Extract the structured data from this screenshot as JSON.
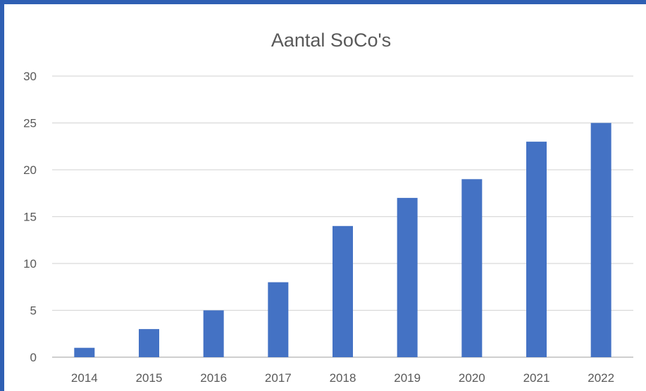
{
  "chart_data": {
    "type": "bar",
    "title": "Aantal SoCo's",
    "xlabel": "",
    "ylabel": "",
    "categories": [
      "2014",
      "2015",
      "2016",
      "2017",
      "2018",
      "2019",
      "2020",
      "2021",
      "2022"
    ],
    "series": [
      {
        "values": [
          1,
          3,
          5,
          8,
          14,
          17,
          19,
          23,
          25
        ]
      }
    ],
    "ylim": [
      0,
      30
    ],
    "yticks": [
      0,
      5,
      10,
      15,
      20,
      25,
      30
    ],
    "grid": true,
    "legend": "none",
    "colors": {
      "bar": "#4472c4",
      "border": "#2f5fb3"
    }
  }
}
